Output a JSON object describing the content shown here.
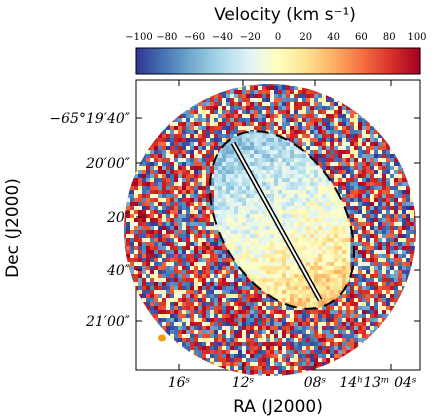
{
  "chart_data": {
    "type": "heatmap",
    "title": "",
    "colorbar": {
      "label": "Velocity (km s⁻¹)",
      "ticks": [
        "−100",
        "−80",
        "−60",
        "−40",
        "−20",
        "0",
        "20",
        "40",
        "60",
        "80",
        "100"
      ],
      "range": [
        -100,
        100
      ],
      "colormap": [
        "#313695",
        "#4575b4",
        "#74add1",
        "#abd9e9",
        "#e0f3f8",
        "#ffffbf",
        "#fee090",
        "#fdae61",
        "#f46d43",
        "#d73027",
        "#a50026"
      ]
    },
    "xlabel": "RA (J2000)",
    "ylabel": "Dec (J2000)",
    "x_ticks": [
      "16ˢ",
      "12ˢ",
      "08ˢ",
      "14ʰ13ᵐ 04ˢ"
    ],
    "y_ticks": [
      "−65°19′40″",
      "20′00″",
      "20″",
      "40″",
      "21′00″"
    ],
    "beam_color": "#f39c12",
    "ellipse_style": "dashed",
    "slit_style": "double-line"
  }
}
